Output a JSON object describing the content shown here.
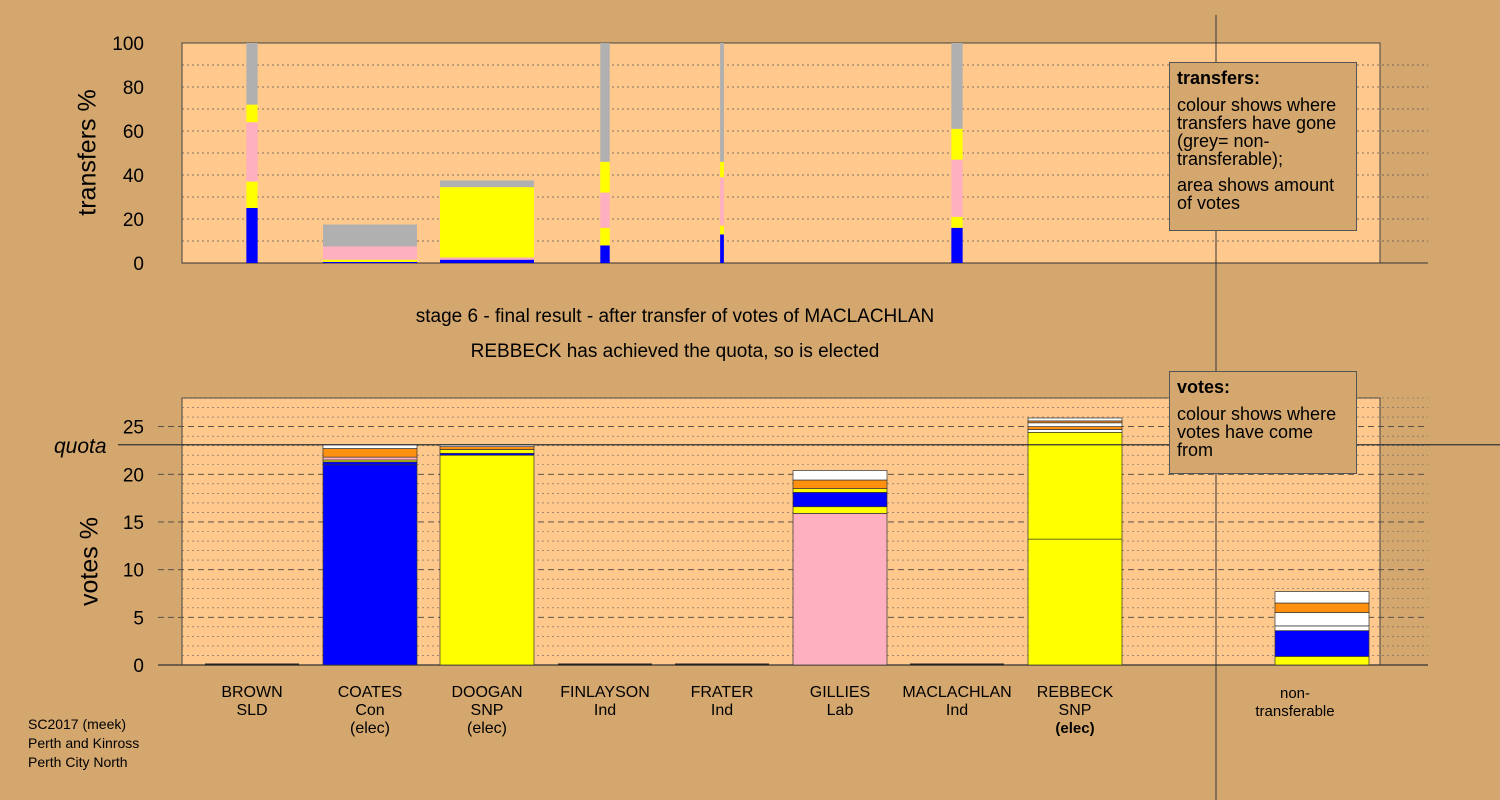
{
  "chart_data": [
    {
      "type": "bar",
      "stacked": true,
      "ylabel": "transfers %",
      "ylim": [
        0,
        100
      ],
      "yticks": [
        0,
        20,
        40,
        60,
        80,
        100
      ],
      "grid": true,
      "series_colors": {
        "blue": "#0000ff",
        "yellow": "#ffff00",
        "pink": "#ffb0c0",
        "grey": "#b0b0b0"
      },
      "bars": [
        {
          "candidate": "BROWN",
          "share_of_width": 0.12,
          "segments": [
            {
              "color": "blue",
              "value": 25
            },
            {
              "color": "yellow",
              "value": 12
            },
            {
              "color": "pink",
              "value": 27
            },
            {
              "color": "yellow",
              "value": 8
            },
            {
              "color": "grey",
              "value": 28
            }
          ]
        },
        {
          "candidate": "COATES",
          "share_of_width": 1.0,
          "segments": [
            {
              "color": "blue",
              "value": 0.5
            },
            {
              "color": "yellow",
              "value": 1
            },
            {
              "color": "pink",
              "value": 6
            },
            {
              "color": "grey",
              "value": 10
            }
          ]
        },
        {
          "candidate": "DOOGAN",
          "share_of_width": 1.0,
          "segments": [
            {
              "color": "blue",
              "value": 1.5
            },
            {
              "color": "pink",
              "value": 1
            },
            {
              "color": "yellow",
              "value": 32
            },
            {
              "color": "grey",
              "value": 3
            }
          ]
        },
        {
          "candidate": "FINLAYSON",
          "share_of_width": 0.1,
          "segments": [
            {
              "color": "blue",
              "value": 8
            },
            {
              "color": "yellow",
              "value": 8
            },
            {
              "color": "pink",
              "value": 16
            },
            {
              "color": "yellow",
              "value": 14
            },
            {
              "color": "grey",
              "value": 54
            }
          ]
        },
        {
          "candidate": "FRATER",
          "share_of_width": 0.04,
          "segments": [
            {
              "color": "blue",
              "value": 13
            },
            {
              "color": "yellow",
              "value": 4
            },
            {
              "color": "pink",
              "value": 22
            },
            {
              "color": "yellow",
              "value": 7
            },
            {
              "color": "grey",
              "value": 54
            }
          ]
        },
        {
          "candidate": "MACLACHLAN",
          "share_of_width": 0.12,
          "segments": [
            {
              "color": "blue",
              "value": 16
            },
            {
              "color": "yellow",
              "value": 5
            },
            {
              "color": "pink",
              "value": 26
            },
            {
              "color": "yellow",
              "value": 14
            },
            {
              "color": "grey",
              "value": 39
            }
          ]
        }
      ]
    },
    {
      "type": "bar",
      "stacked": true,
      "ylabel": "votes %",
      "ylim": [
        0,
        28
      ],
      "yticks": [
        0,
        5,
        10,
        15,
        20,
        25
      ],
      "quota": 23.1,
      "quota_label": "quota",
      "grid": true,
      "series_colors": {
        "blue": "#0000ff",
        "yellow": "#ffff00",
        "pink": "#ffb0c0",
        "orange": "#ff9010",
        "white": "#ffffff"
      },
      "categories": [
        "BROWN",
        "COATES",
        "DOOGAN",
        "FINLAYSON",
        "FRATER",
        "GILLIES",
        "MACLACHLAN",
        "REBBECK",
        "non-transferable"
      ],
      "bars": [
        {
          "candidate": "BROWN",
          "segments": []
        },
        {
          "candidate": "COATES",
          "segments": [
            {
              "color": "blue",
              "value": 21.0
            },
            {
              "color": "blue",
              "value": 0.3
            },
            {
              "color": "yellow",
              "value": 0.2
            },
            {
              "color": "pink",
              "value": 0.3
            },
            {
              "color": "orange",
              "value": 0.9
            },
            {
              "color": "white",
              "value": 0.4
            }
          ]
        },
        {
          "candidate": "DOOGAN",
          "segments": [
            {
              "color": "yellow",
              "value": 22.0
            },
            {
              "color": "blue",
              "value": 0.2
            },
            {
              "color": "yellow",
              "value": 0.4
            },
            {
              "color": "orange",
              "value": 0.3
            },
            {
              "color": "white",
              "value": 0.2
            }
          ]
        },
        {
          "candidate": "FINLAYSON",
          "segments": []
        },
        {
          "candidate": "FRATER",
          "segments": []
        },
        {
          "candidate": "GILLIES",
          "segments": [
            {
              "color": "pink",
              "value": 15.9
            },
            {
              "color": "yellow",
              "value": 0.7
            },
            {
              "color": "blue",
              "value": 1.5
            },
            {
              "color": "yellow",
              "value": 0.4
            },
            {
              "color": "orange",
              "value": 0.9
            },
            {
              "color": "white",
              "value": 1.0
            }
          ]
        },
        {
          "candidate": "MACLACHLAN",
          "segments": []
        },
        {
          "candidate": "REBBECK",
          "segments": [
            {
              "color": "yellow",
              "value": 13.2
            },
            {
              "color": "yellow",
              "value": 11.2
            },
            {
              "color": "white",
              "value": 0.3
            },
            {
              "color": "orange",
              "value": 0.3
            },
            {
              "color": "white",
              "value": 0.4
            },
            {
              "color": "orange",
              "value": 0.2
            },
            {
              "color": "white",
              "value": 0.3
            }
          ]
        },
        {
          "candidate": "non-transferable",
          "segments": [
            {
              "color": "yellow",
              "value": 0.9
            },
            {
              "color": "blue",
              "value": 2.7
            },
            {
              "color": "white",
              "value": 0.5
            },
            {
              "color": "white",
              "value": 1.4
            },
            {
              "color": "orange",
              "value": 1.0
            },
            {
              "color": "white",
              "value": 1.2
            }
          ]
        }
      ]
    }
  ],
  "stage_title": "stage 6 - final result - after transfer of votes of MACLACHLAN",
  "stage_subtitle": "REBBECK has achieved the quota, so is elected",
  "candidates": [
    {
      "name": "BROWN",
      "party": "SLD",
      "status": ""
    },
    {
      "name": "COATES",
      "party": "Con",
      "status": "(elec)"
    },
    {
      "name": "DOOGAN",
      "party": "SNP",
      "status": "(elec)"
    },
    {
      "name": "FINLAYSON",
      "party": "Ind",
      "status": ""
    },
    {
      "name": "FRATER",
      "party": "Ind",
      "status": ""
    },
    {
      "name": "GILLIES",
      "party": "Lab",
      "status": ""
    },
    {
      "name": "MACLACHLAN",
      "party": "Ind",
      "status": ""
    },
    {
      "name": "REBBECK",
      "party": "SNP",
      "status": "(elec)"
    }
  ],
  "non_transferable": {
    "line1": "non-",
    "line2": "transferable"
  },
  "legend_transfers": {
    "title": "transfers:",
    "para1": "colour shows where transfers have gone (grey= non-transferable);",
    "para2": "area shows amount of votes"
  },
  "legend_votes": {
    "title": "votes:",
    "para1": "colour shows where votes have come from"
  },
  "footer": {
    "line1": "SC2017 (meek)",
    "line2": "Perth and Kinross",
    "line3": "Perth City North"
  }
}
